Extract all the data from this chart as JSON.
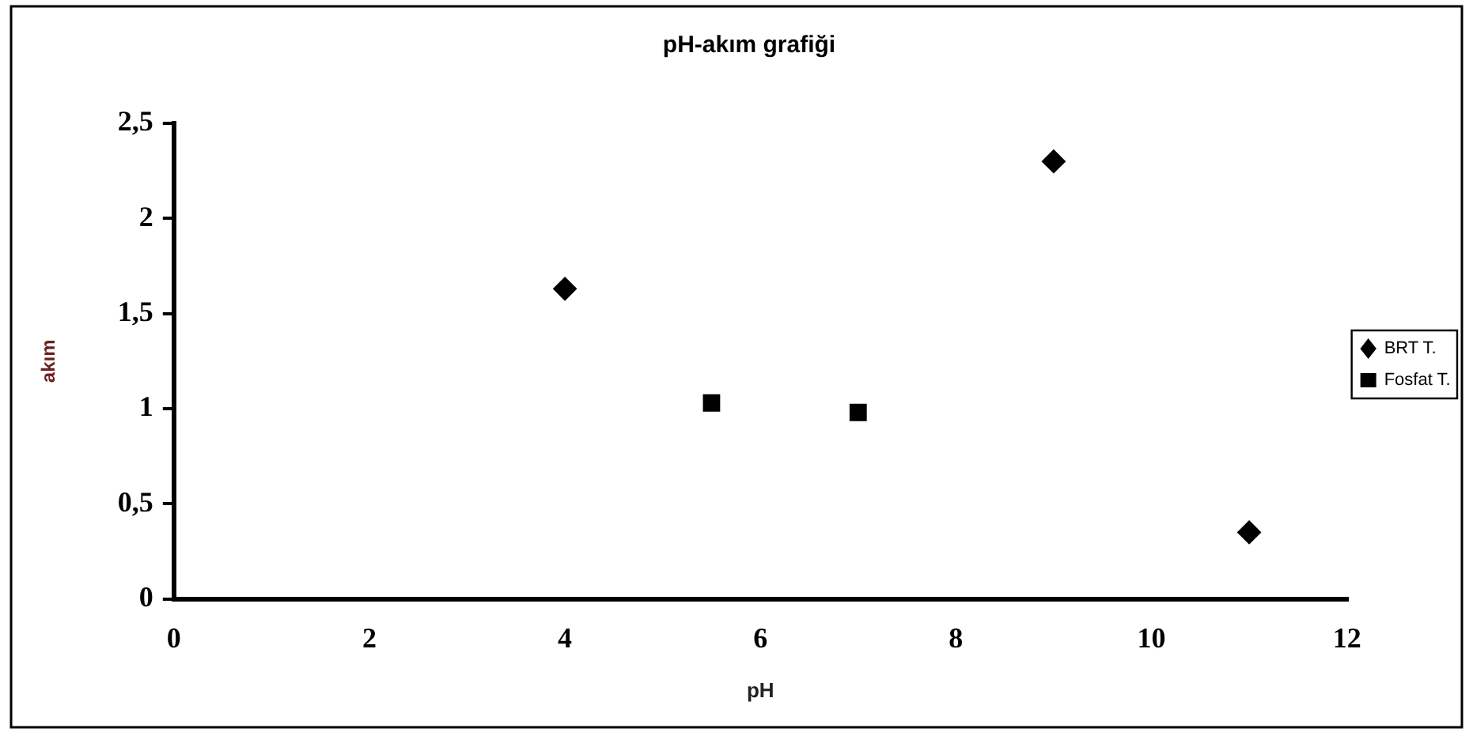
{
  "chart_data": {
    "type": "scatter",
    "title": "pH-akım grafiği",
    "xlabel": "pH",
    "ylabel": "akım",
    "xlim": [
      0,
      12
    ],
    "xticks": [
      0,
      2,
      4,
      6,
      8,
      10,
      12
    ],
    "ylim": [
      0,
      2.5
    ],
    "yticks": [
      0,
      {
        "value": 0.5,
        "label": "0,5"
      },
      1,
      {
        "value": 1.5,
        "label": "1,5"
      },
      2,
      {
        "value": 2.5,
        "label": "2,5"
      }
    ],
    "grid": false,
    "legend": "right",
    "series": [
      {
        "name": "BRT T.",
        "color": "#000000",
        "marker": "diamond",
        "x": [
          4,
          9,
          11
        ],
        "values": [
          1.63,
          2.3,
          0.35
        ]
      },
      {
        "name": "Fosfat T.",
        "color": "#000000",
        "marker": "square",
        "x": [
          5.5,
          7
        ],
        "values": [
          1.03,
          0.98
        ]
      }
    ]
  }
}
